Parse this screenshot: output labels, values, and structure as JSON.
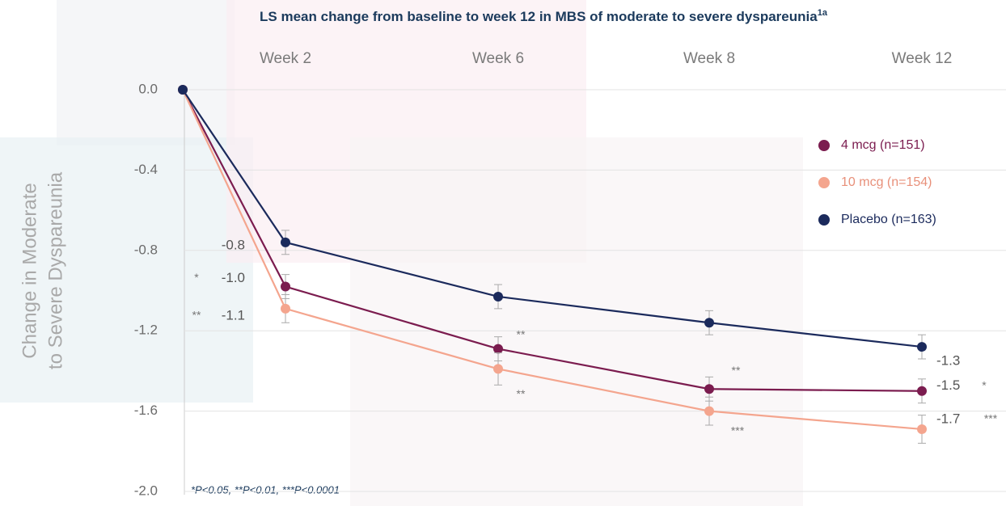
{
  "chart_data": {
    "type": "line",
    "title": "LS mean change from baseline to week 12 in MBS of moderate to severe dyspareunia",
    "title_superscript": "1a",
    "ylabel": [
      "Change in Moderate",
      "to Severe Dyspareunia"
    ],
    "categories": [
      null,
      "Week 2",
      "Week 6",
      "Week 8",
      "Week 12"
    ],
    "ylim": [
      -2.0,
      0.0
    ],
    "yticks": [
      {
        "value": 0,
        "label": "0.0"
      },
      -0.4,
      -0.8,
      -1.2,
      -1.6,
      {
        "value": -2.0,
        "label": "-2.0"
      }
    ],
    "grid": true,
    "legend": "right",
    "footnote": "*P<0.05, **P<0.01, ***P<0.0001",
    "series": [
      {
        "name": "4 mcg (n=151)",
        "color": "#7b1c4f",
        "values": [
          0,
          -0.98,
          -1.29,
          -1.49,
          -1.5
        ],
        "errors": [
          null,
          0.06,
          0.06,
          0.06,
          0.06
        ],
        "value_labels": [
          null,
          "-1.0",
          null,
          null,
          "-1.5"
        ],
        "significance": [
          null,
          "*",
          "**",
          "**",
          "*"
        ]
      },
      {
        "name": "10 mcg (n=154)",
        "color": "#f4a58e",
        "values": [
          0,
          -1.09,
          -1.39,
          -1.6,
          -1.69
        ],
        "errors": [
          null,
          0.07,
          0.08,
          0.07,
          0.07
        ],
        "value_labels": [
          null,
          "-1.1",
          null,
          null,
          "-1.7"
        ],
        "significance": [
          null,
          "**",
          "**",
          "***",
          "***"
        ]
      },
      {
        "name": "Placebo (n=163)",
        "color": "#1b2a5c",
        "values": [
          0,
          -0.76,
          -1.03,
          -1.16,
          -1.28
        ],
        "errors": [
          null,
          0.06,
          0.06,
          0.06,
          0.06
        ],
        "value_labels": [
          null,
          "-0.8",
          null,
          null,
          "-1.3"
        ],
        "significance": [
          null,
          null,
          null,
          null,
          null
        ]
      }
    ]
  }
}
